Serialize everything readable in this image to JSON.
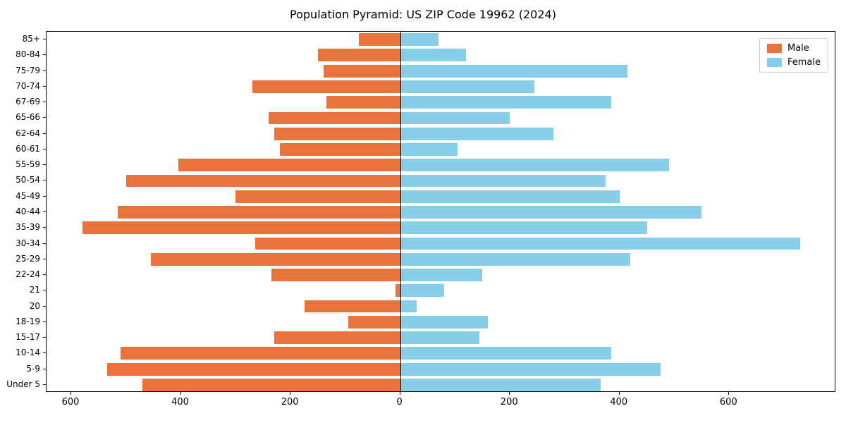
{
  "chart": {
    "title": "Population Pyramid: US ZIP Code 19962 (2024)",
    "legend": {
      "male": "Male",
      "female": "Female"
    }
  },
  "chart_data": {
    "type": "bar",
    "orientation": "horizontal",
    "title": "Population Pyramid: US ZIP Code 19962 (2024)",
    "categories": [
      "85+",
      "80-84",
      "75-79",
      "70-74",
      "67-69",
      "65-66",
      "62-64",
      "60-61",
      "55-59",
      "50-54",
      "45-49",
      "40-44",
      "35-39",
      "30-34",
      "25-29",
      "22-24",
      "21",
      "20",
      "18-19",
      "15-17",
      "10-14",
      "5-9",
      "Under 5"
    ],
    "series": [
      {
        "name": "Male",
        "side": "left",
        "color": "#e8743b",
        "values": [
          75,
          150,
          140,
          270,
          135,
          240,
          230,
          220,
          405,
          500,
          300,
          515,
          580,
          265,
          455,
          235,
          8,
          175,
          95,
          230,
          510,
          535,
          470
        ]
      },
      {
        "name": "Female",
        "side": "right",
        "color": "#87ceeb",
        "values": [
          70,
          120,
          415,
          245,
          385,
          200,
          280,
          105,
          490,
          375,
          400,
          550,
          450,
          730,
          420,
          150,
          80,
          30,
          160,
          145,
          385,
          475,
          365
        ]
      }
    ],
    "xlabel": "",
    "ylabel": "",
    "xlim": [
      -645,
      795
    ],
    "x_ticks": [
      -600,
      -400,
      -200,
      0,
      200,
      400,
      600
    ],
    "x_tick_labels": [
      "600",
      "400",
      "200",
      "0",
      "200",
      "400",
      "600"
    ],
    "grid": false,
    "legend_position": "upper right"
  }
}
